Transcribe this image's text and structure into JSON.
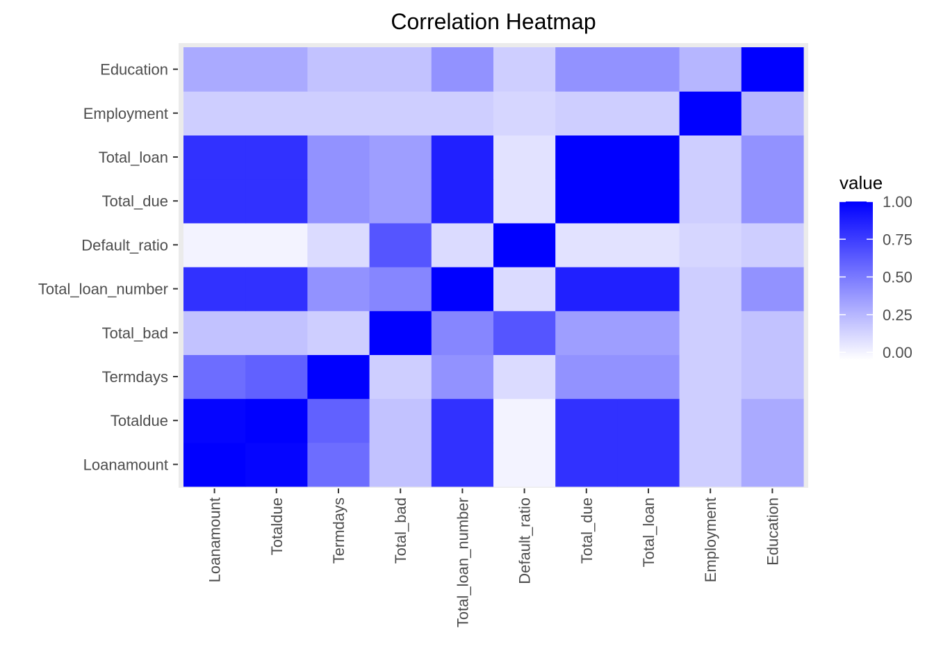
{
  "chart_data": {
    "type": "heatmap",
    "title": "Correlation Heatmap",
    "x_categories": [
      "Loanamount",
      "Totaldue",
      "Termdays",
      "Total_bad",
      "Total_loan_number",
      "Default_ratio",
      "Total_due",
      "Total_loan",
      "Employment",
      "Education"
    ],
    "y_categories": [
      "Loanamount",
      "Totaldue",
      "Termdays",
      "Total_bad",
      "Total_loan_number",
      "Default_ratio",
      "Total_due",
      "Total_loan",
      "Employment",
      "Education"
    ],
    "matrix": [
      [
        1.0,
        0.98,
        0.55,
        0.2,
        0.8,
        0.0,
        0.8,
        0.8,
        0.15,
        0.3
      ],
      [
        0.98,
        1.0,
        0.6,
        0.2,
        0.8,
        0.0,
        0.8,
        0.8,
        0.15,
        0.3
      ],
      [
        0.55,
        0.6,
        1.0,
        0.15,
        0.4,
        0.1,
        0.4,
        0.4,
        0.15,
        0.2
      ],
      [
        0.2,
        0.2,
        0.15,
        1.0,
        0.45,
        0.65,
        0.35,
        0.35,
        0.15,
        0.2
      ],
      [
        0.8,
        0.8,
        0.4,
        0.45,
        1.0,
        0.1,
        0.87,
        0.87,
        0.15,
        0.4
      ],
      [
        0.0,
        0.0,
        0.1,
        0.65,
        0.1,
        1.0,
        0.07,
        0.07,
        0.12,
        0.15
      ],
      [
        0.8,
        0.8,
        0.4,
        0.35,
        0.87,
        0.07,
        1.0,
        1.0,
        0.15,
        0.4
      ],
      [
        0.8,
        0.8,
        0.4,
        0.35,
        0.87,
        0.07,
        1.0,
        1.0,
        0.15,
        0.4
      ],
      [
        0.15,
        0.15,
        0.15,
        0.15,
        0.15,
        0.12,
        0.15,
        0.15,
        1.0,
        0.25
      ],
      [
        0.3,
        0.3,
        0.2,
        0.2,
        0.4,
        0.15,
        0.4,
        0.4,
        0.25,
        1.0
      ]
    ],
    "color_scale": {
      "low": "#ffffff",
      "high": "#0000ff",
      "domain": [
        -0.05,
        1.0
      ]
    },
    "legend": {
      "title": "value",
      "ticks": [
        1.0,
        0.75,
        0.5,
        0.25,
        0.0
      ],
      "tick_labels": [
        "1.00",
        "0.75",
        "0.50",
        "0.25",
        "0.00"
      ],
      "position": "right"
    },
    "panel_background": "#ebebeb",
    "grid": true
  }
}
